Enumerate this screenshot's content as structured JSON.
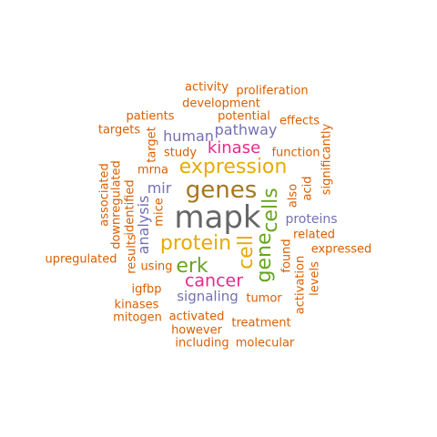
{
  "words": [
    {
      "id": "mapk",
      "text": "mapk",
      "color": "#666666"
    },
    {
      "id": "genes",
      "text": "genes",
      "color": "#a6761d"
    },
    {
      "id": "expression",
      "text": "expression",
      "color": "#e6ab02"
    },
    {
      "id": "protein",
      "text": "protein",
      "color": "#e6ab02"
    },
    {
      "id": "erk",
      "text": "erk",
      "color": "#66a61e"
    },
    {
      "id": "cancer",
      "text": "cancer",
      "color": "#e7298a"
    },
    {
      "id": "kinase",
      "text": "kinase",
      "color": "#e7298a"
    },
    {
      "id": "cells",
      "text": "cells",
      "color": "#66a61e"
    },
    {
      "id": "cell",
      "text": "cell",
      "color": "#e6ab02"
    },
    {
      "id": "gene",
      "text": "gene",
      "color": "#66a61e"
    },
    {
      "id": "human",
      "text": "human",
      "color": "#7570b3"
    },
    {
      "id": "pathway",
      "text": "pathway",
      "color": "#7570b3"
    },
    {
      "id": "mir",
      "text": "mir",
      "color": "#7570b3"
    },
    {
      "id": "analysis",
      "text": "analysis",
      "color": "#7570b3"
    },
    {
      "id": "signaling",
      "text": "signaling",
      "color": "#7570b3"
    },
    {
      "id": "proteins",
      "text": "proteins",
      "color": "#7570b3"
    },
    {
      "id": "activity",
      "text": "activity",
      "color": "#d95f02"
    },
    {
      "id": "proliferation",
      "text": "proliferation",
      "color": "#d95f02"
    },
    {
      "id": "development",
      "text": "development",
      "color": "#d95f02"
    },
    {
      "id": "patients",
      "text": "patients",
      "color": "#d95f02"
    },
    {
      "id": "potential",
      "text": "potential",
      "color": "#d95f02"
    },
    {
      "id": "effects",
      "text": "effects",
      "color": "#d95f02"
    },
    {
      "id": "targets",
      "text": "targets",
      "color": "#d95f02"
    },
    {
      "id": "target",
      "text": "target",
      "color": "#d95f02"
    },
    {
      "id": "study",
      "text": "study",
      "color": "#d95f02"
    },
    {
      "id": "function",
      "text": "function",
      "color": "#d95f02"
    },
    {
      "id": "significantly",
      "text": "significantly",
      "color": "#d95f02"
    },
    {
      "id": "mrna",
      "text": "mrna",
      "color": "#d95f02"
    },
    {
      "id": "associated",
      "text": "associated",
      "color": "#d95f02"
    },
    {
      "id": "downregulated",
      "text": "downregulated",
      "color": "#d95f02"
    },
    {
      "id": "identified",
      "text": "identified",
      "color": "#d95f02"
    },
    {
      "id": "mice",
      "text": "mice",
      "color": "#d95f02"
    },
    {
      "id": "also",
      "text": "also",
      "color": "#d95f02"
    },
    {
      "id": "acid",
      "text": "acid",
      "color": "#d95f02"
    },
    {
      "id": "related",
      "text": "related",
      "color": "#d95f02"
    },
    {
      "id": "found",
      "text": "found",
      "color": "#d95f02"
    },
    {
      "id": "expressed",
      "text": "expressed",
      "color": "#d95f02"
    },
    {
      "id": "upregulated",
      "text": "upregulated",
      "color": "#d95f02"
    },
    {
      "id": "results",
      "text": "results",
      "color": "#d95f02"
    },
    {
      "id": "using",
      "text": "using",
      "color": "#d95f02"
    },
    {
      "id": "levels",
      "text": "levels",
      "color": "#d95f02"
    },
    {
      "id": "activation",
      "text": "activation",
      "color": "#d95f02"
    },
    {
      "id": "igfbp",
      "text": "igfbp",
      "color": "#d95f02"
    },
    {
      "id": "tumor",
      "text": "tumor",
      "color": "#d95f02"
    },
    {
      "id": "kinases",
      "text": "kinases",
      "color": "#d95f02"
    },
    {
      "id": "mitogen",
      "text": "mitogen",
      "color": "#d95f02"
    },
    {
      "id": "activated",
      "text": "activated",
      "color": "#d95f02"
    },
    {
      "id": "treatment",
      "text": "treatment",
      "color": "#d95f02"
    },
    {
      "id": "however",
      "text": "however",
      "color": "#d95f02"
    },
    {
      "id": "including",
      "text": "including",
      "color": "#d95f02"
    },
    {
      "id": "molecular",
      "text": "molecular",
      "color": "#d95f02"
    }
  ]
}
